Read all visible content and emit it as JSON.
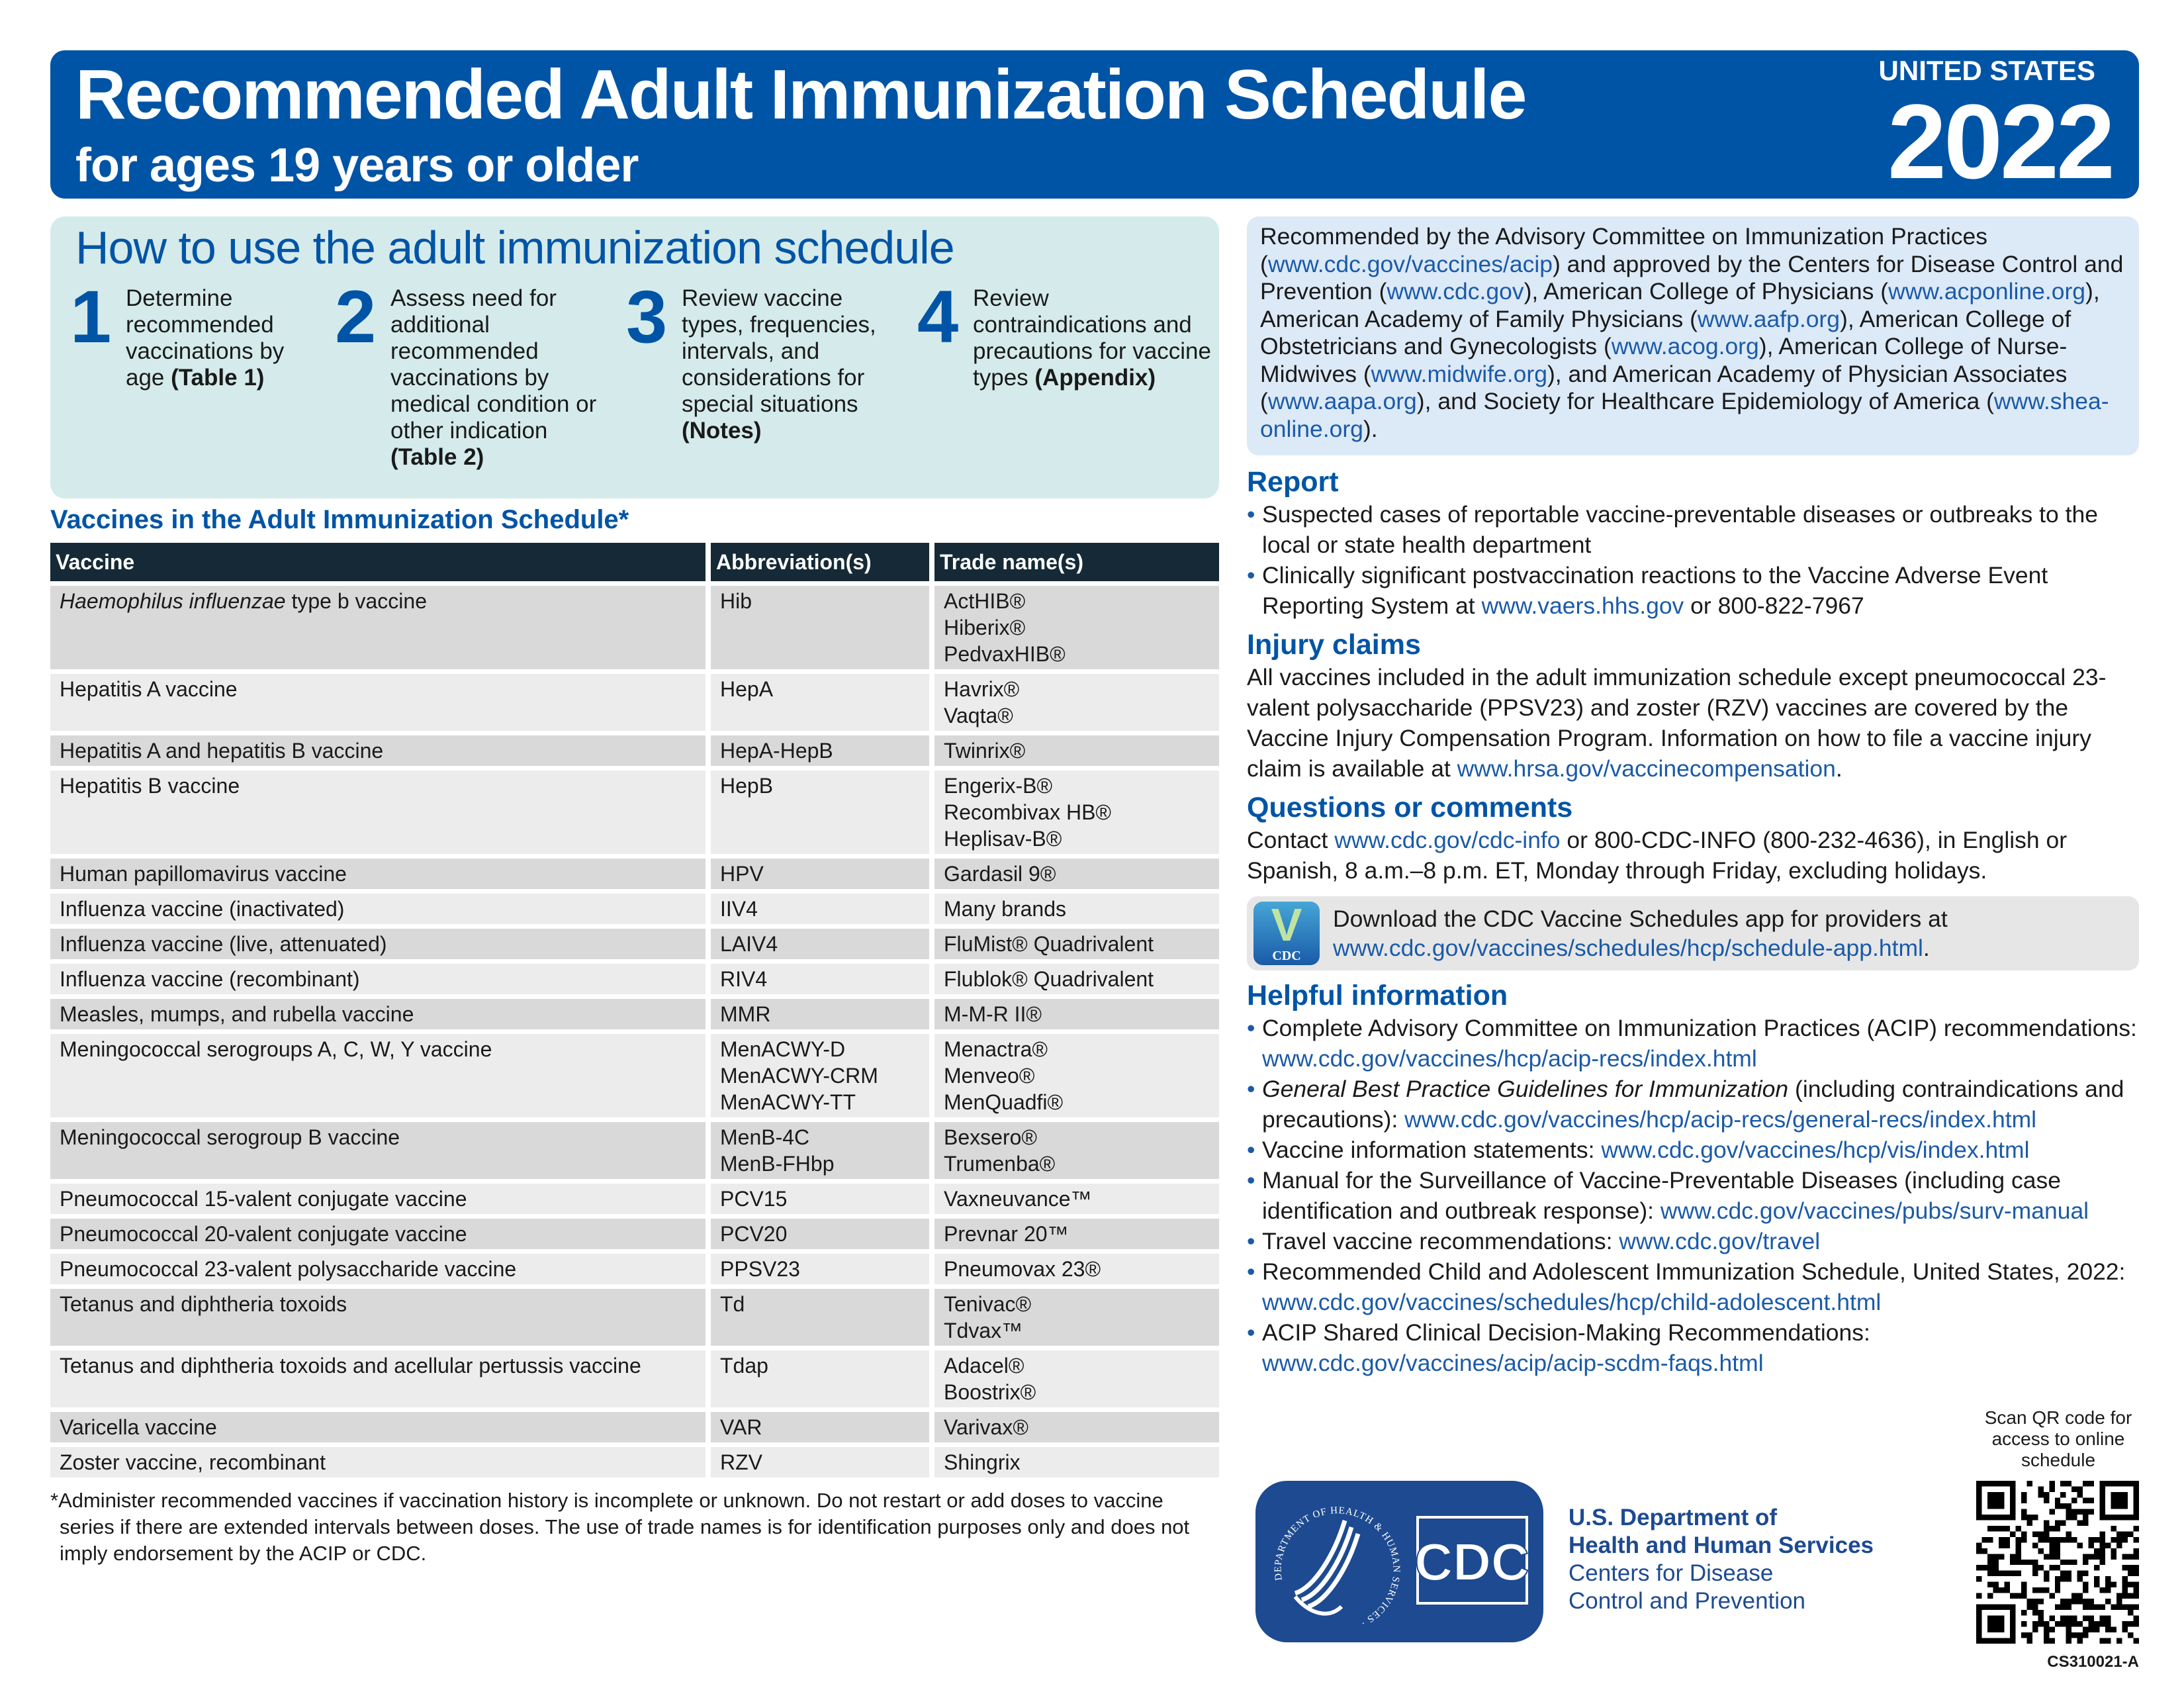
{
  "header": {
    "title": "Recommended Adult Immunization Schedule",
    "subtitle": "for ages 19 years or older",
    "country": "UNITED STATES",
    "year": "2022"
  },
  "howto": {
    "title": "How to use the adult immunization schedule",
    "steps": [
      {
        "num": "1",
        "seg": [
          {
            "t": "Determine recommended vaccinations by age "
          },
          {
            "t": "(Table 1)",
            "b": true
          }
        ]
      },
      {
        "num": "2",
        "seg": [
          {
            "t": "Assess need for additional recommended vaccinations by medical condition or other indication "
          },
          {
            "t": "(Table 2)",
            "b": true
          }
        ]
      },
      {
        "num": "3",
        "seg": [
          {
            "t": "Review vaccine types, frequencies, intervals, and considerations for special situations "
          },
          {
            "t": "(Notes)",
            "b": true
          }
        ]
      },
      {
        "num": "4",
        "seg": [
          {
            "t": "Review contraindications and precautions for vaccine types "
          },
          {
            "t": "(Appendix)",
            "b": true
          }
        ]
      }
    ]
  },
  "vaccines": {
    "title": "Vaccines in the Adult Immunization Schedule*",
    "headers": [
      "Vaccine",
      "Abbreviation(s)",
      "Trade name(s)"
    ],
    "rows": [
      {
        "italic": "Haemophilus influenzae",
        "vaccine": " type b vaccine",
        "abbr": "Hib",
        "trade": "ActHIB®\nHiberix®\nPedvaxHIB®"
      },
      {
        "vaccine": "Hepatitis A vaccine",
        "abbr": "HepA",
        "trade": "Havrix®\nVaqta®"
      },
      {
        "vaccine": "Hepatitis A and hepatitis B vaccine",
        "abbr": "HepA-HepB",
        "trade": "Twinrix®"
      },
      {
        "vaccine": "Hepatitis B vaccine",
        "abbr": "HepB",
        "trade": "Engerix-B®\nRecombivax HB®\nHeplisav-B®"
      },
      {
        "vaccine": "Human papillomavirus vaccine",
        "abbr": "HPV",
        "trade": "Gardasil 9®"
      },
      {
        "vaccine": "Influenza vaccine (inactivated)",
        "abbr": "IIV4",
        "trade": "Many brands"
      },
      {
        "vaccine": "Influenza vaccine (live, attenuated)",
        "abbr": "LAIV4",
        "trade": "FluMist® Quadrivalent"
      },
      {
        "vaccine": "Influenza vaccine (recombinant)",
        "abbr": "RIV4",
        "trade": "Flublok® Quadrivalent"
      },
      {
        "vaccine": "Measles, mumps, and rubella vaccine",
        "abbr": "MMR",
        "trade": "M-M-R II®"
      },
      {
        "vaccine": "Meningococcal serogroups A, C, W, Y vaccine",
        "abbr": "MenACWY-D\nMenACWY-CRM\nMenACWY-TT",
        "trade": "Menactra®\nMenveo®\nMenQuadfi®"
      },
      {
        "vaccine": "Meningococcal serogroup B vaccine",
        "abbr": "MenB-4C\nMenB-FHbp",
        "trade": "Bexsero®\nTrumenba®"
      },
      {
        "vaccine": "Pneumococcal 15-valent conjugate vaccine",
        "abbr": "PCV15",
        "trade": "Vaxneuvance™"
      },
      {
        "vaccine": "Pneumococcal 20-valent conjugate vaccine",
        "abbr": "PCV20",
        "trade": "Prevnar 20™"
      },
      {
        "vaccine": "Pneumococcal 23-valent polysaccharide vaccine",
        "abbr": "PPSV23",
        "trade": "Pneumovax 23®"
      },
      {
        "vaccine": "Tetanus and diphtheria toxoids",
        "abbr": "Td",
        "trade": "Tenivac®\nTdvax™"
      },
      {
        "vaccine": "Tetanus and diphtheria toxoids and acellular pertussis vaccine",
        "abbr": "Tdap",
        "trade": "Adacel®\nBoostrix®"
      },
      {
        "vaccine": "Varicella vaccine",
        "abbr": "VAR",
        "trade": "Varivax®"
      },
      {
        "vaccine": "Zoster vaccine, recombinant",
        "abbr": "RZV",
        "trade": "Shingrix"
      }
    ],
    "footnote": "*Administer recommended vaccines if vaccination history is incomplete or unknown. Do not restart or add doses to vaccine series if there are extended intervals between doses. The use of trade names is for identification purposes only and does not imply endorsement by the ACIP or CDC."
  },
  "acip": [
    {
      "t": "Recommended by the Advisory Committee on Immunization Practices ("
    },
    {
      "t": "www.cdc.gov/vaccines/acip",
      "link": true
    },
    {
      "t": ") and approved by the Centers for Disease Control and Prevention ("
    },
    {
      "t": "www.cdc.gov",
      "link": true
    },
    {
      "t": "), American College of Physicians ("
    },
    {
      "t": "www.acponline.org",
      "link": true
    },
    {
      "t": "), American Academy of Family Physicians ("
    },
    {
      "t": "www.aafp.org",
      "link": true
    },
    {
      "t": "), American College of Obstetricians and Gynecologists ("
    },
    {
      "t": "www.acog.org",
      "link": true
    },
    {
      "t": "), American College of Nurse-Midwives ("
    },
    {
      "t": "www.midwife.org",
      "link": true
    },
    {
      "t": "), and American Academy of Physician Associates ("
    },
    {
      "t": "www.aapa.org",
      "link": true
    },
    {
      "t": "), and Society for Healthcare Epidemiology of America ("
    },
    {
      "t": "www.shea-online.org",
      "link": true
    },
    {
      "t": ")."
    }
  ],
  "report": {
    "title": "Report",
    "items": [
      [
        {
          "t": "Suspected cases of reportable vaccine-preventable diseases or outbreaks to the local or state health department"
        }
      ],
      [
        {
          "t": "Clinically significant postvaccination reactions to the Vaccine Adverse Event Reporting System at "
        },
        {
          "t": "www.vaers.hhs.gov",
          "link": true
        },
        {
          "t": " or 800-822-7967"
        }
      ]
    ]
  },
  "injury": {
    "title": "Injury claims",
    "text": [
      {
        "t": "All vaccines included in the adult immunization schedule except pneumococcal 23-valent polysaccharide (PPSV23) and zoster (RZV) vaccines are covered by the Vaccine Injury Compensation Program. Information on how to file a vaccine injury claim is available at "
      },
      {
        "t": "www.hrsa.gov/vaccinecompensation",
        "link": true
      },
      {
        "t": "."
      }
    ]
  },
  "questions": {
    "title": "Questions or comments",
    "text": [
      {
        "t": "Contact "
      },
      {
        "t": "www.cdc.gov/cdc-info",
        "link": true
      },
      {
        "t": " or 800-CDC-INFO (800-232-4636), in English or Spanish, 8 a.m.–8 p.m. ET, Monday through Friday, excluding holidays."
      }
    ]
  },
  "app": {
    "icon_letter": "V",
    "icon_label": "CDC",
    "text": [
      {
        "t": "Download the CDC Vaccine Schedules app for providers at "
      },
      {
        "t": "www.cdc.gov/vaccines/schedules/hcp/schedule-app.html",
        "link": true
      },
      {
        "t": "."
      }
    ]
  },
  "helpful": {
    "title": "Helpful information",
    "items": [
      [
        {
          "t": "Complete Advisory Committee on Immunization Practices (ACIP) recommendations: "
        },
        {
          "t": "www.cdc.gov/vaccines/hcp/acip-recs/index.html",
          "link": true
        }
      ],
      [
        {
          "t": "General Best Practice Guidelines for Immunization",
          "i": true
        },
        {
          "t": " (including contraindications and precautions): "
        },
        {
          "t": "www.cdc.gov/vaccines/hcp/acip-recs/general-recs/index.html",
          "link": true
        }
      ],
      [
        {
          "t": "Vaccine information statements: "
        },
        {
          "t": "www.cdc.gov/vaccines/hcp/vis/index.html",
          "link": true
        }
      ],
      [
        {
          "t": "Manual for the Surveillance of Vaccine-Preventable Diseases (including case identification and outbreak response): "
        },
        {
          "t": "www.cdc.gov/vaccines/pubs/surv-manual",
          "link": true
        }
      ],
      [
        {
          "t": "Travel vaccine recommendations: "
        },
        {
          "t": "www.cdc.gov/travel",
          "link": true
        }
      ],
      [
        {
          "t": "Recommended Child and Adolescent Immunization Schedule, United States, 2022: "
        },
        {
          "t": "www.cdc.gov/vaccines/schedules/hcp/child-adolescent.html",
          "link": true
        }
      ],
      [
        {
          "t": "ACIP Shared Clinical Decision-Making Recommendations: "
        },
        {
          "t": "www.cdc.gov/vaccines/acip/acip-scdm-faqs.html",
          "link": true
        }
      ]
    ]
  },
  "footer": {
    "hhs_line1": "U.S. Department of",
    "hhs_line2": "Health and Human Services",
    "cdc_line1": "Centers for Disease",
    "cdc_line2": "Control and Prevention",
    "logo_text": "CDC",
    "seal_text": "DEPARTMENT OF HEALTH & HUMAN SERVICES · USA",
    "qr_caption": "Scan QR code for access to online schedule",
    "code": "CS310021-A"
  },
  "colors": {
    "brand_blue": "#0054a6",
    "link": "#1a5aa8",
    "table_header": "#152a36",
    "howto_bg": "#d5ebeb",
    "acip_bg": "#dce9f7"
  }
}
